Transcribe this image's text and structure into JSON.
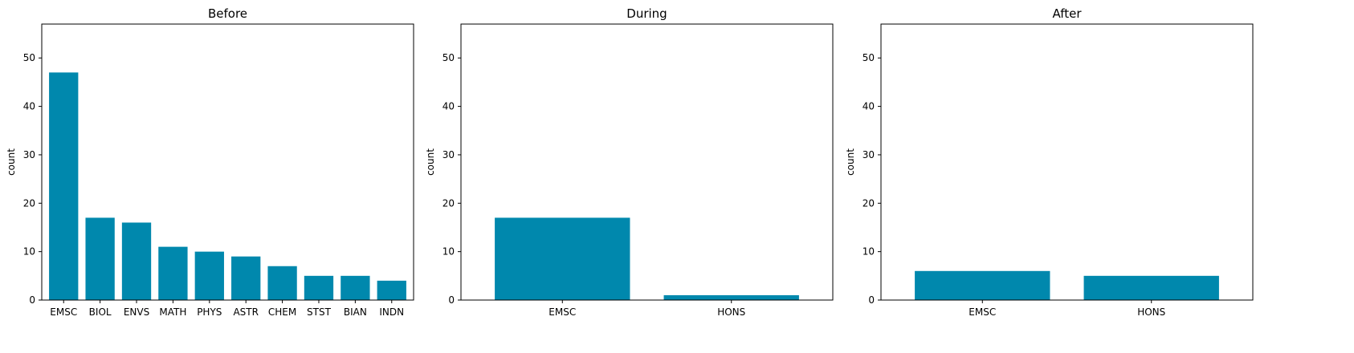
{
  "chart_data": [
    {
      "type": "bar",
      "title": "Before",
      "xlabel": "",
      "ylabel": "count",
      "ylim": [
        0,
        57
      ],
      "yticks": [
        0,
        10,
        20,
        30,
        40,
        50
      ],
      "grid": false,
      "categories": [
        "EMSC",
        "BIOL",
        "ENVS",
        "MATH",
        "PHYS",
        "ASTR",
        "CHEM",
        "STST",
        "BIAN",
        "INDN"
      ],
      "values": [
        47,
        17,
        16,
        11,
        10,
        9,
        7,
        5,
        5,
        4
      ],
      "color": "#0088ad"
    },
    {
      "type": "bar",
      "title": "During",
      "xlabel": "",
      "ylabel": "count",
      "ylim": [
        0,
        57
      ],
      "yticks": [
        0,
        10,
        20,
        30,
        40,
        50
      ],
      "grid": false,
      "categories": [
        "EMSC",
        "HONS"
      ],
      "values": [
        17,
        1
      ],
      "color": "#0088ad"
    },
    {
      "type": "bar",
      "title": "After",
      "xlabel": "",
      "ylabel": "count",
      "ylim": [
        0,
        57
      ],
      "yticks": [
        0,
        10,
        20,
        30,
        40,
        50
      ],
      "grid": false,
      "categories": [
        "EMSC",
        "HONS"
      ],
      "values": [
        6,
        5
      ],
      "color": "#0088ad"
    }
  ]
}
